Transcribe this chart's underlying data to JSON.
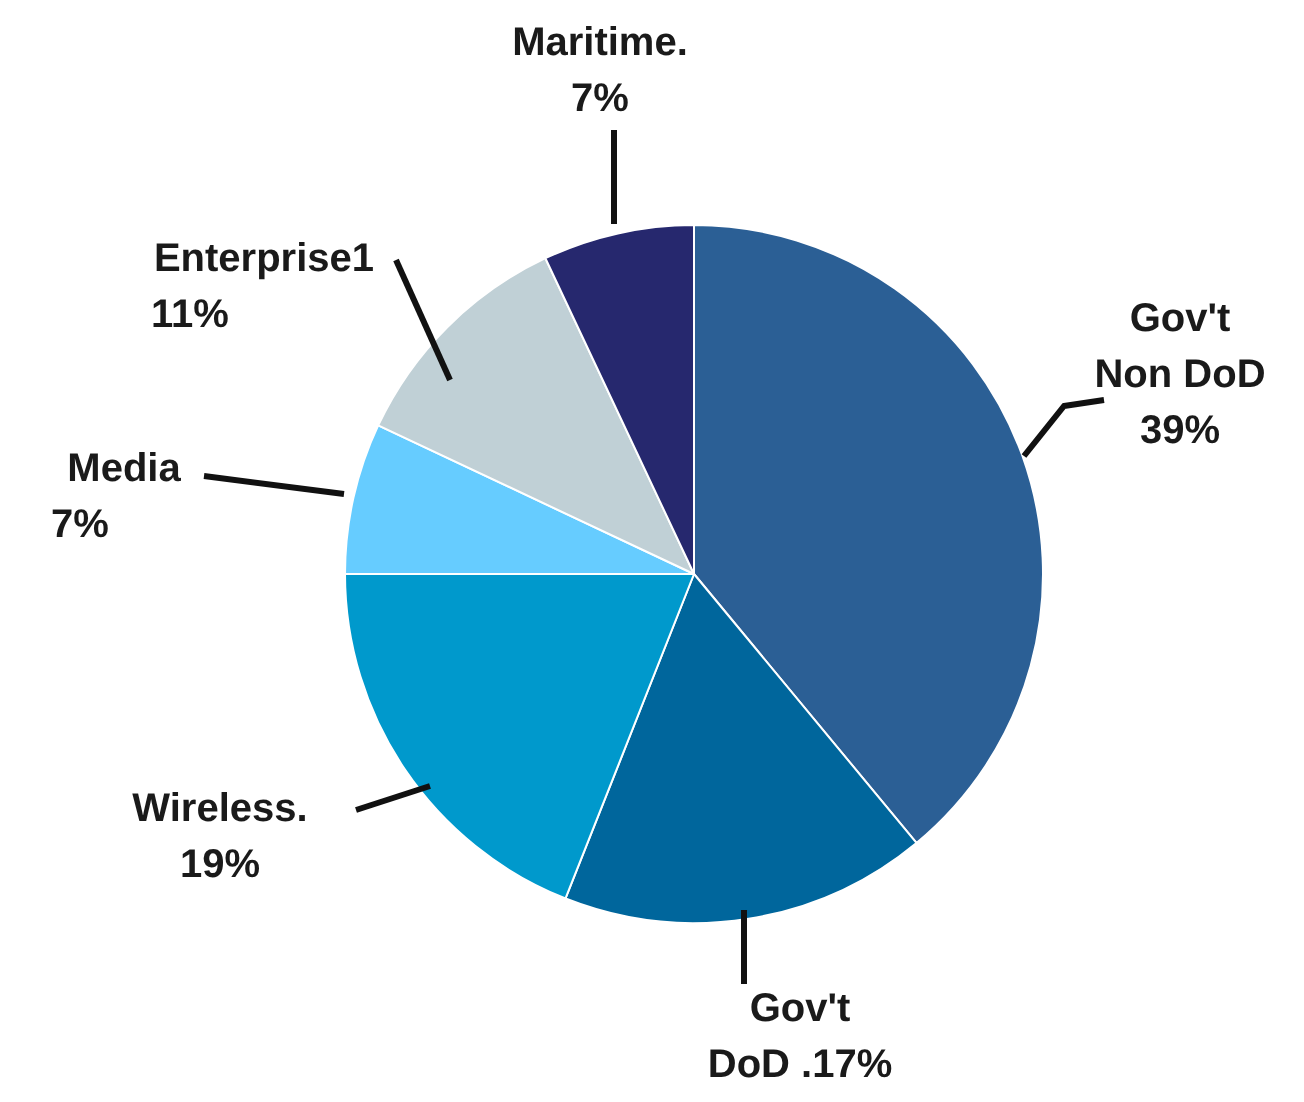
{
  "chart_data": {
    "type": "pie",
    "categories": [
      "Gov't\nNon DoD",
      "Gov't\nDoD .",
      "Wireless.",
      "Media",
      "Enterprise1",
      "Maritime."
    ],
    "values": [
      39,
      17,
      19,
      7,
      11,
      7
    ],
    "colors": [
      "#2b5f95",
      "#00669c",
      "#0099cc",
      "#66ccff",
      "#c0d0d6",
      "#26286e"
    ],
    "value_labels": [
      "39%",
      "17%",
      "19%",
      "7%",
      "11%",
      "7%"
    ]
  }
}
